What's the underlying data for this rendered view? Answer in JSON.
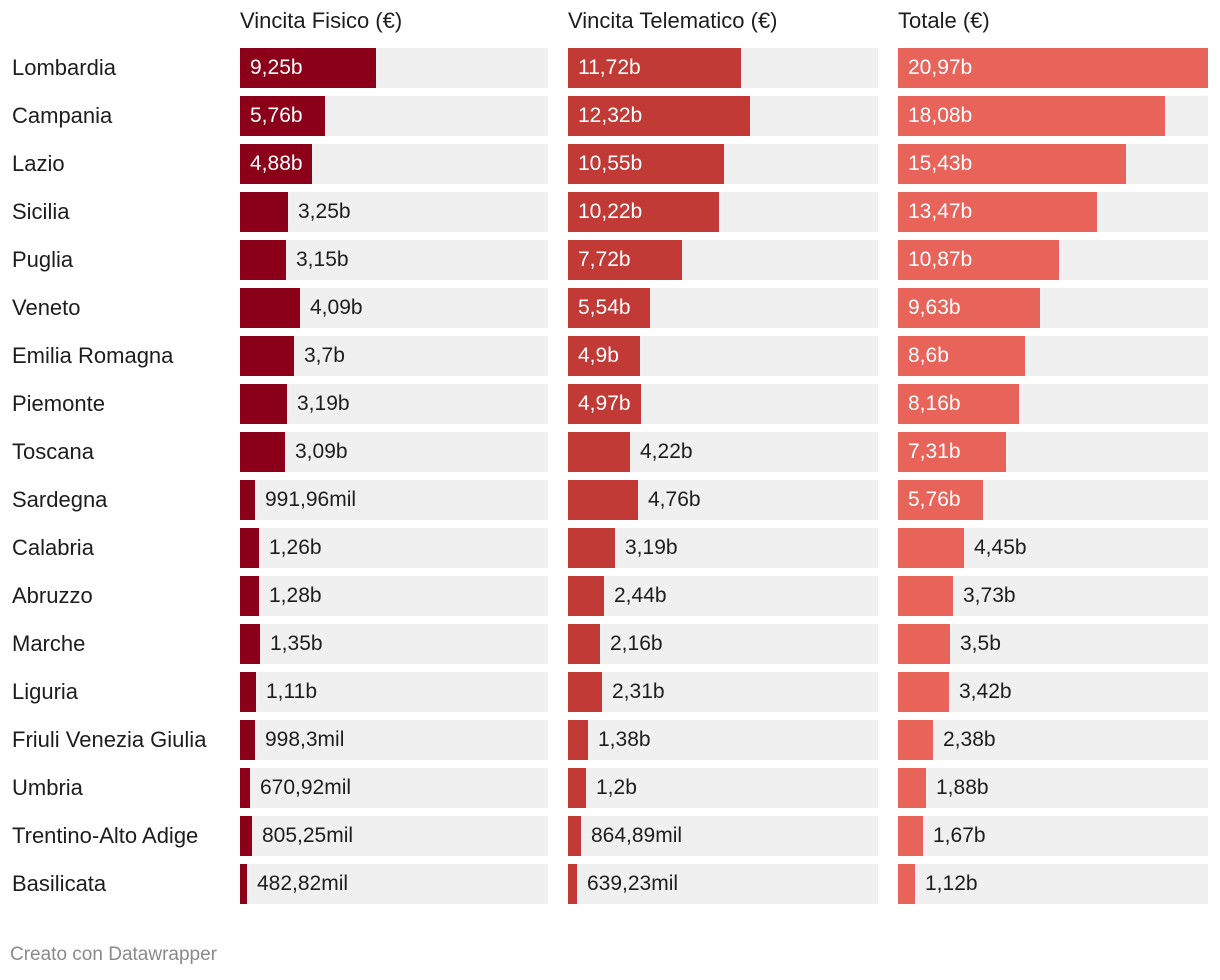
{
  "chart_data": {
    "type": "bar",
    "orientation": "horizontal",
    "unit": "€",
    "categories": [
      "Lombardia",
      "Campania",
      "Lazio",
      "Sicilia",
      "Puglia",
      "Veneto",
      "Emilia Romagna",
      "Piemonte",
      "Toscana",
      "Sardegna",
      "Calabria",
      "Abruzzo",
      "Marche",
      "Liguria",
      "Friuli Venezia Giulia",
      "Umbria",
      "Trentino-Alto Adige",
      "Basilicata"
    ],
    "series": [
      {
        "name": "Vincita Fisico (€)",
        "color": "#8b0018",
        "values": [
          9.25,
          5.76,
          4.88,
          3.25,
          3.15,
          4.09,
          3.7,
          3.19,
          3.09,
          0.99196,
          1.26,
          1.28,
          1.35,
          1.11,
          0.9983,
          0.67092,
          0.80525,
          0.48282
        ],
        "labels": [
          "9,25b",
          "5,76b",
          "4,88b",
          "3,25b",
          "3,15b",
          "4,09b",
          "3,7b",
          "3,19b",
          "3,09b",
          "991,96mil",
          "1,26b",
          "1,28b",
          "1,35b",
          "1,11b",
          "998,3mil",
          "670,92mil",
          "805,25mil",
          "482,82mil"
        ]
      },
      {
        "name": "Vincita Telematico (€)",
        "color": "#c23a35",
        "values": [
          11.72,
          12.32,
          10.55,
          10.22,
          7.72,
          5.54,
          4.9,
          4.97,
          4.22,
          4.76,
          3.19,
          2.44,
          2.16,
          2.31,
          1.38,
          1.2,
          0.86489,
          0.63923
        ],
        "labels": [
          "11,72b",
          "12,32b",
          "10,55b",
          "10,22b",
          "7,72b",
          "5,54b",
          "4,9b",
          "4,97b",
          "4,22b",
          "4,76b",
          "3,19b",
          "2,44b",
          "2,16b",
          "2,31b",
          "1,38b",
          "1,2b",
          "864,89mil",
          "639,23mil"
        ]
      },
      {
        "name": "Totale (€)",
        "color": "#e8645a",
        "values": [
          20.97,
          18.08,
          15.43,
          13.47,
          10.87,
          9.63,
          8.6,
          8.16,
          7.31,
          5.76,
          4.45,
          3.73,
          3.5,
          3.42,
          2.38,
          1.88,
          1.67,
          1.12
        ],
        "labels": [
          "20,97b",
          "18,08b",
          "15,43b",
          "13,47b",
          "10,87b",
          "9,63b",
          "8,6b",
          "8,16b",
          "7,31b",
          "5,76b",
          "4,45b",
          "3,73b",
          "3,5b",
          "3,42b",
          "2,38b",
          "1,88b",
          "1,67b",
          "1,12b"
        ]
      }
    ],
    "xlim": [
      0,
      20.97
    ],
    "track_color": "#f0f0f0"
  },
  "footer": {
    "credit": "Creato con Datawrapper"
  }
}
